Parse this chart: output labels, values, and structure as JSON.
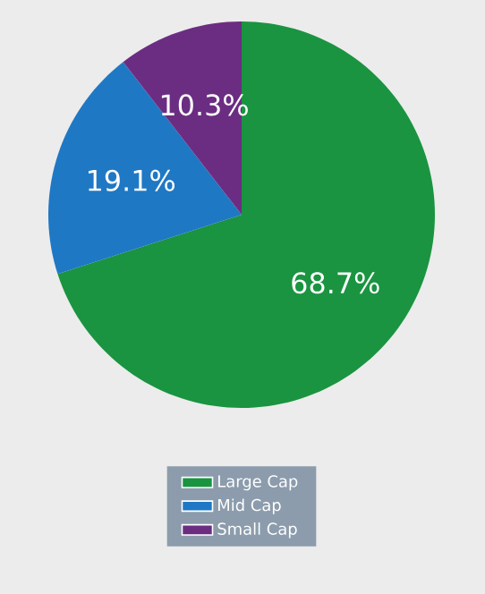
{
  "chart_data": {
    "type": "pie",
    "categories": [
      "Large Cap",
      "Mid Cap",
      "Small Cap"
    ],
    "values": [
      68.7,
      19.1,
      10.3
    ],
    "colors": [
      "#1a9440",
      "#1f78c4",
      "#6b2d82"
    ],
    "value_labels": [
      "68.7%",
      "19.1%",
      "10.3%"
    ],
    "legend": "bottom"
  }
}
